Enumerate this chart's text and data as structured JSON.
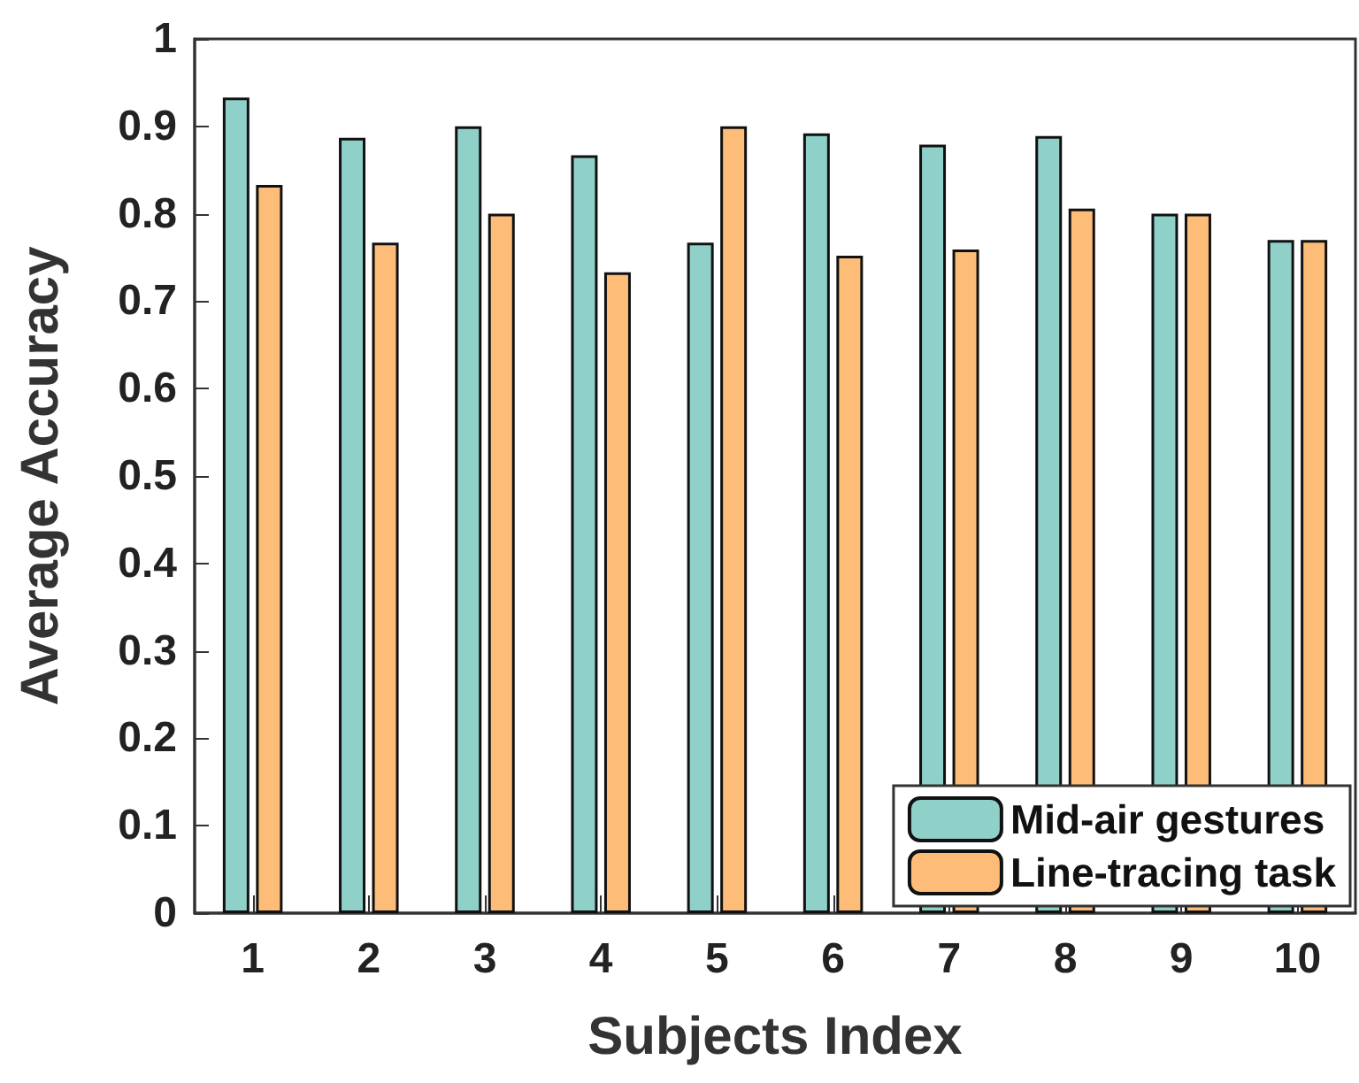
{
  "chart_data": {
    "type": "bar",
    "xlabel": "Subjects Index",
    "ylabel": "Average Accuracy",
    "categories": [
      "1",
      "2",
      "3",
      "4",
      "5",
      "6",
      "7",
      "8",
      "9",
      "10"
    ],
    "series": [
      {
        "name": "Mid-air gestures",
        "color": "#8fd0c8",
        "values": [
          0.933,
          0.887,
          0.9,
          0.867,
          0.767,
          0.892,
          0.879,
          0.889,
          0.8,
          0.77
        ]
      },
      {
        "name": "Line-tracing task",
        "color": "#fdbd78",
        "values": [
          0.833,
          0.767,
          0.8,
          0.733,
          0.9,
          0.752,
          0.759,
          0.806,
          0.8,
          0.77
        ]
      }
    ],
    "ylim": [
      0,
      1
    ],
    "yticks": [
      0,
      0.1,
      0.2,
      0.3,
      0.4,
      0.5,
      0.6,
      0.7,
      0.8,
      0.9,
      1
    ],
    "grid": false,
    "legend": "bottom right"
  }
}
